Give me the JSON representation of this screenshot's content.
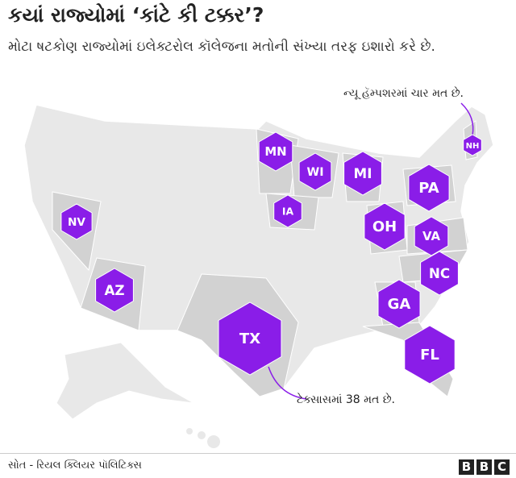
{
  "title": "કયાં રાજ્યોમાં ‘કાંટે કી ટક્કર’?",
  "subtitle": "મોટા ષટકોણ રાજ્યોમાં ઇલેક્ટરોલ કૉલેજના મતોની સંખ્યા તરફ ઇશારો કરે છે.",
  "states": [
    "MN",
    "WI",
    "MI",
    "IA",
    "NV",
    "AZ",
    "TX",
    "OH",
    "PA",
    "VA",
    "NC",
    "GA",
    "FL",
    "NH"
  ],
  "annotations": [
    "ન્યૂ હૅમ્પશરમાં ચાર મત છે.",
    "ટેક્સાસમાં 38 મત છે."
  ],
  "source": "સોત - રિયલ ક્લિયર પૉલિટિક્સ",
  "logo": [
    "B",
    "B",
    "C"
  ]
}
